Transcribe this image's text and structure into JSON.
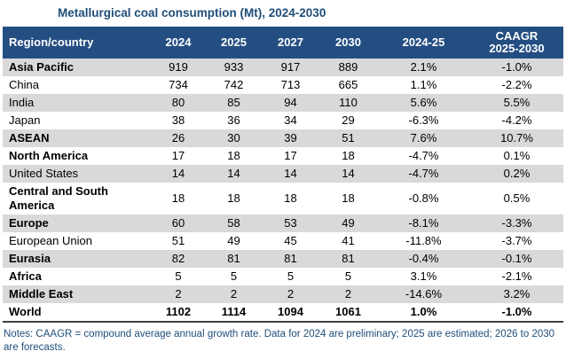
{
  "chart_data": {
    "type": "table",
    "title": "Metallurgical coal consumption (Mt), 2024-2030",
    "unit": "Mt",
    "columns": [
      "Region/country",
      "2024",
      "2025",
      "2027",
      "2030",
      "2024-25",
      "CAAGR\n2025-2030"
    ],
    "rows": [
      {
        "region": "Asia Pacific",
        "bold": true,
        "all_bold": false,
        "values": [
          "919",
          "933",
          "917",
          "889",
          "2.1%",
          "-1.0%"
        ]
      },
      {
        "region": "China",
        "bold": false,
        "all_bold": false,
        "values": [
          "734",
          "742",
          "713",
          "665",
          "1.1%",
          "-2.2%"
        ]
      },
      {
        "region": "India",
        "bold": false,
        "all_bold": false,
        "values": [
          "80",
          "85",
          "94",
          "110",
          "5.6%",
          "5.5%"
        ]
      },
      {
        "region": "Japan",
        "bold": false,
        "all_bold": false,
        "values": [
          "38",
          "36",
          "34",
          "29",
          "-6.3%",
          "-4.2%"
        ]
      },
      {
        "region": "ASEAN",
        "bold": true,
        "all_bold": false,
        "values": [
          "26",
          "30",
          "39",
          "51",
          "7.6%",
          "10.7%"
        ]
      },
      {
        "region": "North America",
        "bold": true,
        "all_bold": false,
        "values": [
          "17",
          "18",
          "17",
          "18",
          "-4.7%",
          "0.1%"
        ]
      },
      {
        "region": "United States",
        "bold": false,
        "all_bold": false,
        "values": [
          "14",
          "14",
          "14",
          "14",
          "-4.7%",
          "0.2%"
        ]
      },
      {
        "region": "Central and South America",
        "bold": true,
        "all_bold": false,
        "values": [
          "18",
          "18",
          "18",
          "18",
          "-0.8%",
          "0.5%"
        ]
      },
      {
        "region": "Europe",
        "bold": true,
        "all_bold": false,
        "values": [
          "60",
          "58",
          "53",
          "49",
          "-8.1%",
          "-3.3%"
        ]
      },
      {
        "region": "European Union",
        "bold": false,
        "all_bold": false,
        "values": [
          "51",
          "49",
          "45",
          "41",
          "-11.8%",
          "-3.7%"
        ]
      },
      {
        "region": "Eurasia",
        "bold": true,
        "all_bold": false,
        "values": [
          "82",
          "81",
          "81",
          "81",
          "-0.4%",
          "-0.1%"
        ]
      },
      {
        "region": "Africa",
        "bold": true,
        "all_bold": false,
        "values": [
          "5",
          "5",
          "5",
          "5",
          "3.1%",
          "-2.1%"
        ]
      },
      {
        "region": "Middle East",
        "bold": true,
        "all_bold": false,
        "values": [
          "2",
          "2",
          "2",
          "2",
          "-14.6%",
          "3.2%"
        ]
      },
      {
        "region": "World",
        "bold": true,
        "all_bold": true,
        "values": [
          "1102",
          "1114",
          "1094",
          "1061",
          "1.0%",
          "-1.0%"
        ]
      }
    ],
    "notes": "Notes: CAAGR = compound average annual growth rate. Data for 2024 are preliminary; 2025 are estimated; 2026 to 2030 are forecasts.",
    "colors": {
      "header_bg": "#244E82",
      "header_text": "#FFFFFF",
      "stripe": "#D9D9D9",
      "title_text": "#1F4E79",
      "notes_text": "#1F4E79",
      "bottom_rule": "#404040"
    },
    "layout": {
      "stripe_first_row": true,
      "grid": "zebra",
      "legend": "none"
    }
  }
}
